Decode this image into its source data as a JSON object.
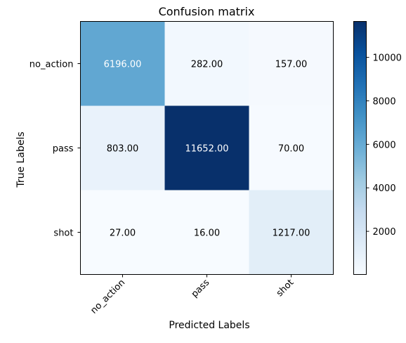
{
  "chart_data": {
    "type": "heatmap",
    "title": "Confusion matrix",
    "xlabel": "Predicted Labels",
    "ylabel": "True Labels",
    "x_categories": [
      "no_action",
      "pass",
      "shot"
    ],
    "y_categories": [
      "no_action",
      "pass",
      "shot"
    ],
    "values": [
      [
        6196,
        282,
        157
      ],
      [
        803,
        11652,
        70
      ],
      [
        27,
        16,
        1217
      ]
    ],
    "cell_labels": [
      [
        "6196.00",
        "282.00",
        "157.00"
      ],
      [
        "803.00",
        "11652.00",
        "70.00"
      ],
      [
        "27.00",
        "16.00",
        "1217.00"
      ]
    ],
    "colormap": "Blues",
    "colorbar": {
      "min": 16,
      "max": 11652,
      "ticks": [
        2000,
        4000,
        6000,
        8000,
        10000
      ],
      "tick_labels": [
        "2000",
        "4000",
        "6000",
        "8000",
        "10000"
      ]
    },
    "x_tick_rotation_deg": 45
  }
}
